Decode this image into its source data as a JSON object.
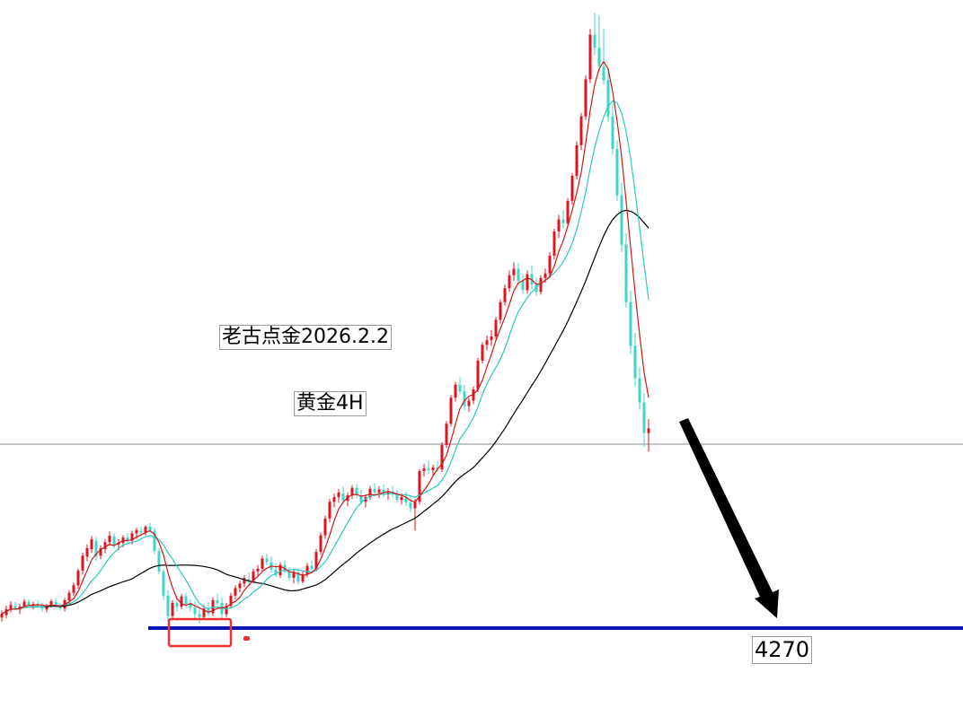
{
  "annotations": {
    "title": "老古点金2026.2.2",
    "subtitle": "黄金4H",
    "target_label": "4270"
  },
  "colors": {
    "up_candle": "#e0141e",
    "down_candle": "#3fd6c8",
    "ma_fast": "#d01818",
    "ma_mid": "#2cc9bd",
    "ma_slow": "#000000",
    "support_line": "#0a14b4",
    "highlight_box": "#f03030",
    "arrow": "#000000",
    "grid_line": "#8a8a8a"
  },
  "chart_data": {
    "type": "candlestick",
    "title": "",
    "indicators": [
      "ma_fast",
      "ma_mid",
      "ma_slow"
    ],
    "grid": false,
    "levels": [
      {
        "name": "support",
        "value": 4270
      }
    ],
    "trend": {
      "start": 4280,
      "peak": 5595,
      "last": 4700,
      "target": 4270
    },
    "candles": [
      [
        4293,
        4308,
        4284,
        4301
      ],
      [
        4298,
        4318,
        4291,
        4311
      ],
      [
        4311,
        4328,
        4304,
        4320
      ],
      [
        4318,
        4326,
        4309,
        4312
      ],
      [
        4310,
        4322,
        4300,
        4316
      ],
      [
        4318,
        4333,
        4312,
        4327
      ],
      [
        4326,
        4331,
        4314,
        4319
      ],
      [
        4318,
        4327,
        4310,
        4322
      ],
      [
        4322,
        4330,
        4313,
        4318
      ],
      [
        4315,
        4325,
        4305,
        4312
      ],
      [
        4310,
        4322,
        4304,
        4318
      ],
      [
        4320,
        4332,
        4314,
        4328
      ],
      [
        4326,
        4334,
        4313,
        4317
      ],
      [
        4318,
        4325,
        4308,
        4312
      ],
      [
        4312,
        4335,
        4306,
        4330
      ],
      [
        4330,
        4352,
        4323,
        4346
      ],
      [
        4346,
        4368,
        4339,
        4362
      ],
      [
        4362,
        4398,
        4355,
        4394
      ],
      [
        4394,
        4432,
        4385,
        4426
      ],
      [
        4424,
        4450,
        4414,
        4442
      ],
      [
        4440,
        4468,
        4432,
        4461
      ],
      [
        4458,
        4466,
        4415,
        4424
      ],
      [
        4426,
        4448,
        4418,
        4442
      ],
      [
        4440,
        4462,
        4431,
        4455
      ],
      [
        4455,
        4478,
        4447,
        4469
      ],
      [
        4468,
        4474,
        4442,
        4448
      ],
      [
        4450,
        4462,
        4438,
        4454
      ],
      [
        4454,
        4470,
        4444,
        4465
      ],
      [
        4465,
        4475,
        4452,
        4458
      ],
      [
        4458,
        4480,
        4450,
        4474
      ],
      [
        4474,
        4486,
        4462,
        4481
      ],
      [
        4479,
        4488,
        4468,
        4476
      ],
      [
        4476,
        4492,
        4469,
        4488
      ],
      [
        4488,
        4496,
        4474,
        4480
      ],
      [
        4480,
        4486,
        4430,
        4436
      ],
      [
        4436,
        4442,
        4386,
        4392
      ],
      [
        4392,
        4396,
        4330,
        4340
      ],
      [
        4340,
        4352,
        4284,
        4296
      ],
      [
        4296,
        4330,
        4288,
        4324
      ],
      [
        4324,
        4340,
        4306,
        4316
      ],
      [
        4316,
        4344,
        4311,
        4338
      ],
      [
        4338,
        4346,
        4316,
        4322
      ],
      [
        4322,
        4332,
        4306,
        4314
      ],
      [
        4314,
        4328,
        4290,
        4300
      ],
      [
        4300,
        4314,
        4280,
        4294
      ],
      [
        4294,
        4320,
        4288,
        4312
      ],
      [
        4312,
        4326,
        4296,
        4302
      ],
      [
        4302,
        4336,
        4296,
        4330
      ],
      [
        4330,
        4344,
        4318,
        4324
      ],
      [
        4324,
        4336,
        4292,
        4300
      ],
      [
        4300,
        4324,
        4294,
        4318
      ],
      [
        4318,
        4346,
        4312,
        4340
      ],
      [
        4340,
        4362,
        4332,
        4356
      ],
      [
        4356,
        4372,
        4347,
        4366
      ],
      [
        4366,
        4384,
        4358,
        4378
      ],
      [
        4376,
        4390,
        4362,
        4372
      ],
      [
        4372,
        4398,
        4366,
        4392
      ],
      [
        4392,
        4406,
        4380,
        4398
      ],
      [
        4398,
        4426,
        4392,
        4420
      ],
      [
        4420,
        4430,
        4406,
        4412
      ],
      [
        4412,
        4424,
        4390,
        4396
      ],
      [
        4396,
        4410,
        4380,
        4384
      ],
      [
        4384,
        4412,
        4378,
        4406
      ],
      [
        4406,
        4416,
        4388,
        4392
      ],
      [
        4392,
        4402,
        4372,
        4378
      ],
      [
        4378,
        4396,
        4366,
        4390
      ],
      [
        4390,
        4398,
        4364,
        4370
      ],
      [
        4370,
        4392,
        4366,
        4386
      ],
      [
        4386,
        4410,
        4380,
        4404
      ],
      [
        4404,
        4416,
        4392,
        4398
      ],
      [
        4398,
        4440,
        4392,
        4434
      ],
      [
        4434,
        4476,
        4428,
        4470
      ],
      [
        4470,
        4512,
        4462,
        4506
      ],
      [
        4506,
        4548,
        4498,
        4542
      ],
      [
        4542,
        4560,
        4530,
        4552
      ],
      [
        4552,
        4570,
        4540,
        4562
      ],
      [
        4560,
        4574,
        4536,
        4544
      ],
      [
        4544,
        4562,
        4532,
        4556
      ],
      [
        4556,
        4578,
        4548,
        4572
      ],
      [
        4572,
        4580,
        4550,
        4556
      ],
      [
        4556,
        4568,
        4536,
        4542
      ],
      [
        4542,
        4558,
        4530,
        4552
      ],
      [
        4552,
        4576,
        4546,
        4570
      ],
      [
        4570,
        4582,
        4554,
        4562
      ],
      [
        4562,
        4576,
        4550,
        4568
      ],
      [
        4568,
        4580,
        4552,
        4558
      ],
      [
        4558,
        4572,
        4546,
        4564
      ],
      [
        4564,
        4576,
        4552,
        4558
      ],
      [
        4558,
        4568,
        4540,
        4546
      ],
      [
        4546,
        4560,
        4536,
        4552
      ],
      [
        4552,
        4564,
        4532,
        4540
      ],
      [
        4540,
        4554,
        4520,
        4528
      ],
      [
        4528,
        4548,
        4480,
        4542
      ],
      [
        4542,
        4612,
        4536,
        4608
      ],
      [
        4608,
        4624,
        4596,
        4614
      ],
      [
        4614,
        4630,
        4602,
        4610
      ],
      [
        4610,
        4622,
        4596,
        4616
      ],
      [
        4616,
        4630,
        4606,
        4612
      ],
      [
        4612,
        4670,
        4606,
        4664
      ],
      [
        4664,
        4716,
        4658,
        4710
      ],
      [
        4710,
        4772,
        4704,
        4766
      ],
      [
        4766,
        4800,
        4758,
        4794
      ],
      [
        4794,
        4810,
        4774,
        4780
      ],
      [
        4780,
        4794,
        4740,
        4748
      ],
      [
        4748,
        4766,
        4736,
        4760
      ],
      [
        4760,
        4790,
        4752,
        4784
      ],
      [
        4784,
        4852,
        4778,
        4846
      ],
      [
        4846,
        4886,
        4840,
        4880
      ],
      [
        4880,
        4900,
        4868,
        4890
      ],
      [
        4890,
        4912,
        4878,
        4898
      ],
      [
        4898,
        4940,
        4892,
        4934
      ],
      [
        4934,
        4978,
        4926,
        4972
      ],
      [
        4972,
        5010,
        4964,
        5002
      ],
      [
        5002,
        5040,
        4994,
        5030
      ],
      [
        5030,
        5058,
        5018,
        5044
      ],
      [
        5044,
        5056,
        5010,
        5018
      ],
      [
        5018,
        5032,
        4990,
        4998
      ],
      [
        4998,
        5040,
        4990,
        5032
      ],
      [
        5032,
        5050,
        5000,
        5010
      ],
      [
        5010,
        5026,
        4986,
        4994
      ],
      [
        4994,
        5030,
        4988,
        5024
      ],
      [
        5024,
        5044,
        5014,
        5034
      ],
      [
        5034,
        5080,
        5026,
        5072
      ],
      [
        5072,
        5130,
        5064,
        5124
      ],
      [
        5124,
        5160,
        5110,
        5150
      ],
      [
        5150,
        5170,
        5130,
        5142
      ],
      [
        5142,
        5196,
        5136,
        5190
      ],
      [
        5190,
        5250,
        5182,
        5244
      ],
      [
        5244,
        5318,
        5236,
        5310
      ],
      [
        5310,
        5380,
        5300,
        5372
      ],
      [
        5372,
        5460,
        5364,
        5452
      ],
      [
        5452,
        5560,
        5444,
        5548
      ],
      [
        5548,
        5595,
        5504,
        5520
      ],
      [
        5520,
        5590,
        5470,
        5480
      ],
      [
        5480,
        5560,
        5440,
        5450
      ],
      [
        5450,
        5472,
        5360,
        5372
      ],
      [
        5372,
        5400,
        5290,
        5302
      ],
      [
        5302,
        5320,
        5190,
        5202
      ],
      [
        5202,
        5230,
        5080,
        5096
      ],
      [
        5096,
        5120,
        4960,
        4972
      ],
      [
        4972,
        4996,
        4860,
        4878
      ],
      [
        4878,
        4906,
        4790,
        4808
      ],
      [
        4808,
        4832,
        4740,
        4756
      ],
      [
        4756,
        4776,
        4660,
        4690
      ],
      [
        4690,
        4720,
        4650,
        4700
      ]
    ]
  }
}
